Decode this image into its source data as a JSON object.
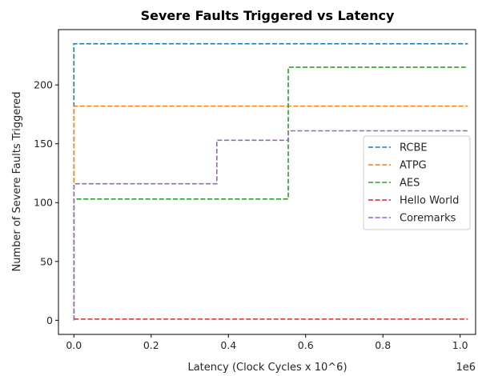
{
  "chart_data": {
    "type": "line",
    "title": "Severe Faults Triggered vs Latency",
    "xlabel": "Latency (Clock Cycles x 10^6)",
    "ylabel": "Number of Severe Faults Triggered",
    "x_offset_text": "1e6",
    "xlim": [
      -40000,
      1040000
    ],
    "ylim": [
      -12,
      247
    ],
    "x_ticks": [
      0,
      200000,
      400000,
      600000,
      800000,
      1000000
    ],
    "x_tick_labels": [
      "0.0",
      "0.2",
      "0.4",
      "0.6",
      "0.8",
      "1.0"
    ],
    "y_ticks": [
      0,
      50,
      100,
      150,
      200
    ],
    "y_tick_labels": [
      "0",
      "50",
      "100",
      "150",
      "200"
    ],
    "grid": false,
    "legend_position": "center-right",
    "line_style": "dashed",
    "step": true,
    "series": [
      {
        "name": "RCBE",
        "color": "#1f77b4",
        "points": [
          [
            0,
            0
          ],
          [
            0,
            235
          ],
          [
            1020000,
            235
          ]
        ]
      },
      {
        "name": "ATPG",
        "color": "#ff7f0e",
        "points": [
          [
            0,
            0
          ],
          [
            0,
            182
          ],
          [
            1020000,
            182
          ]
        ]
      },
      {
        "name": "AES",
        "color": "#2ca02c",
        "points": [
          [
            0,
            0
          ],
          [
            0,
            103
          ],
          [
            555000,
            103
          ],
          [
            555000,
            215
          ],
          [
            1020000,
            215
          ]
        ]
      },
      {
        "name": "Hello World",
        "color": "#d62728",
        "points": [
          [
            0,
            1
          ],
          [
            1020000,
            1
          ]
        ]
      },
      {
        "name": "Coremarks",
        "color": "#9467bd",
        "points": [
          [
            0,
            0
          ],
          [
            0,
            116
          ],
          [
            370000,
            116
          ],
          [
            370000,
            153
          ],
          [
            555000,
            153
          ],
          [
            555000,
            161
          ],
          [
            1020000,
            161
          ]
        ]
      }
    ]
  }
}
